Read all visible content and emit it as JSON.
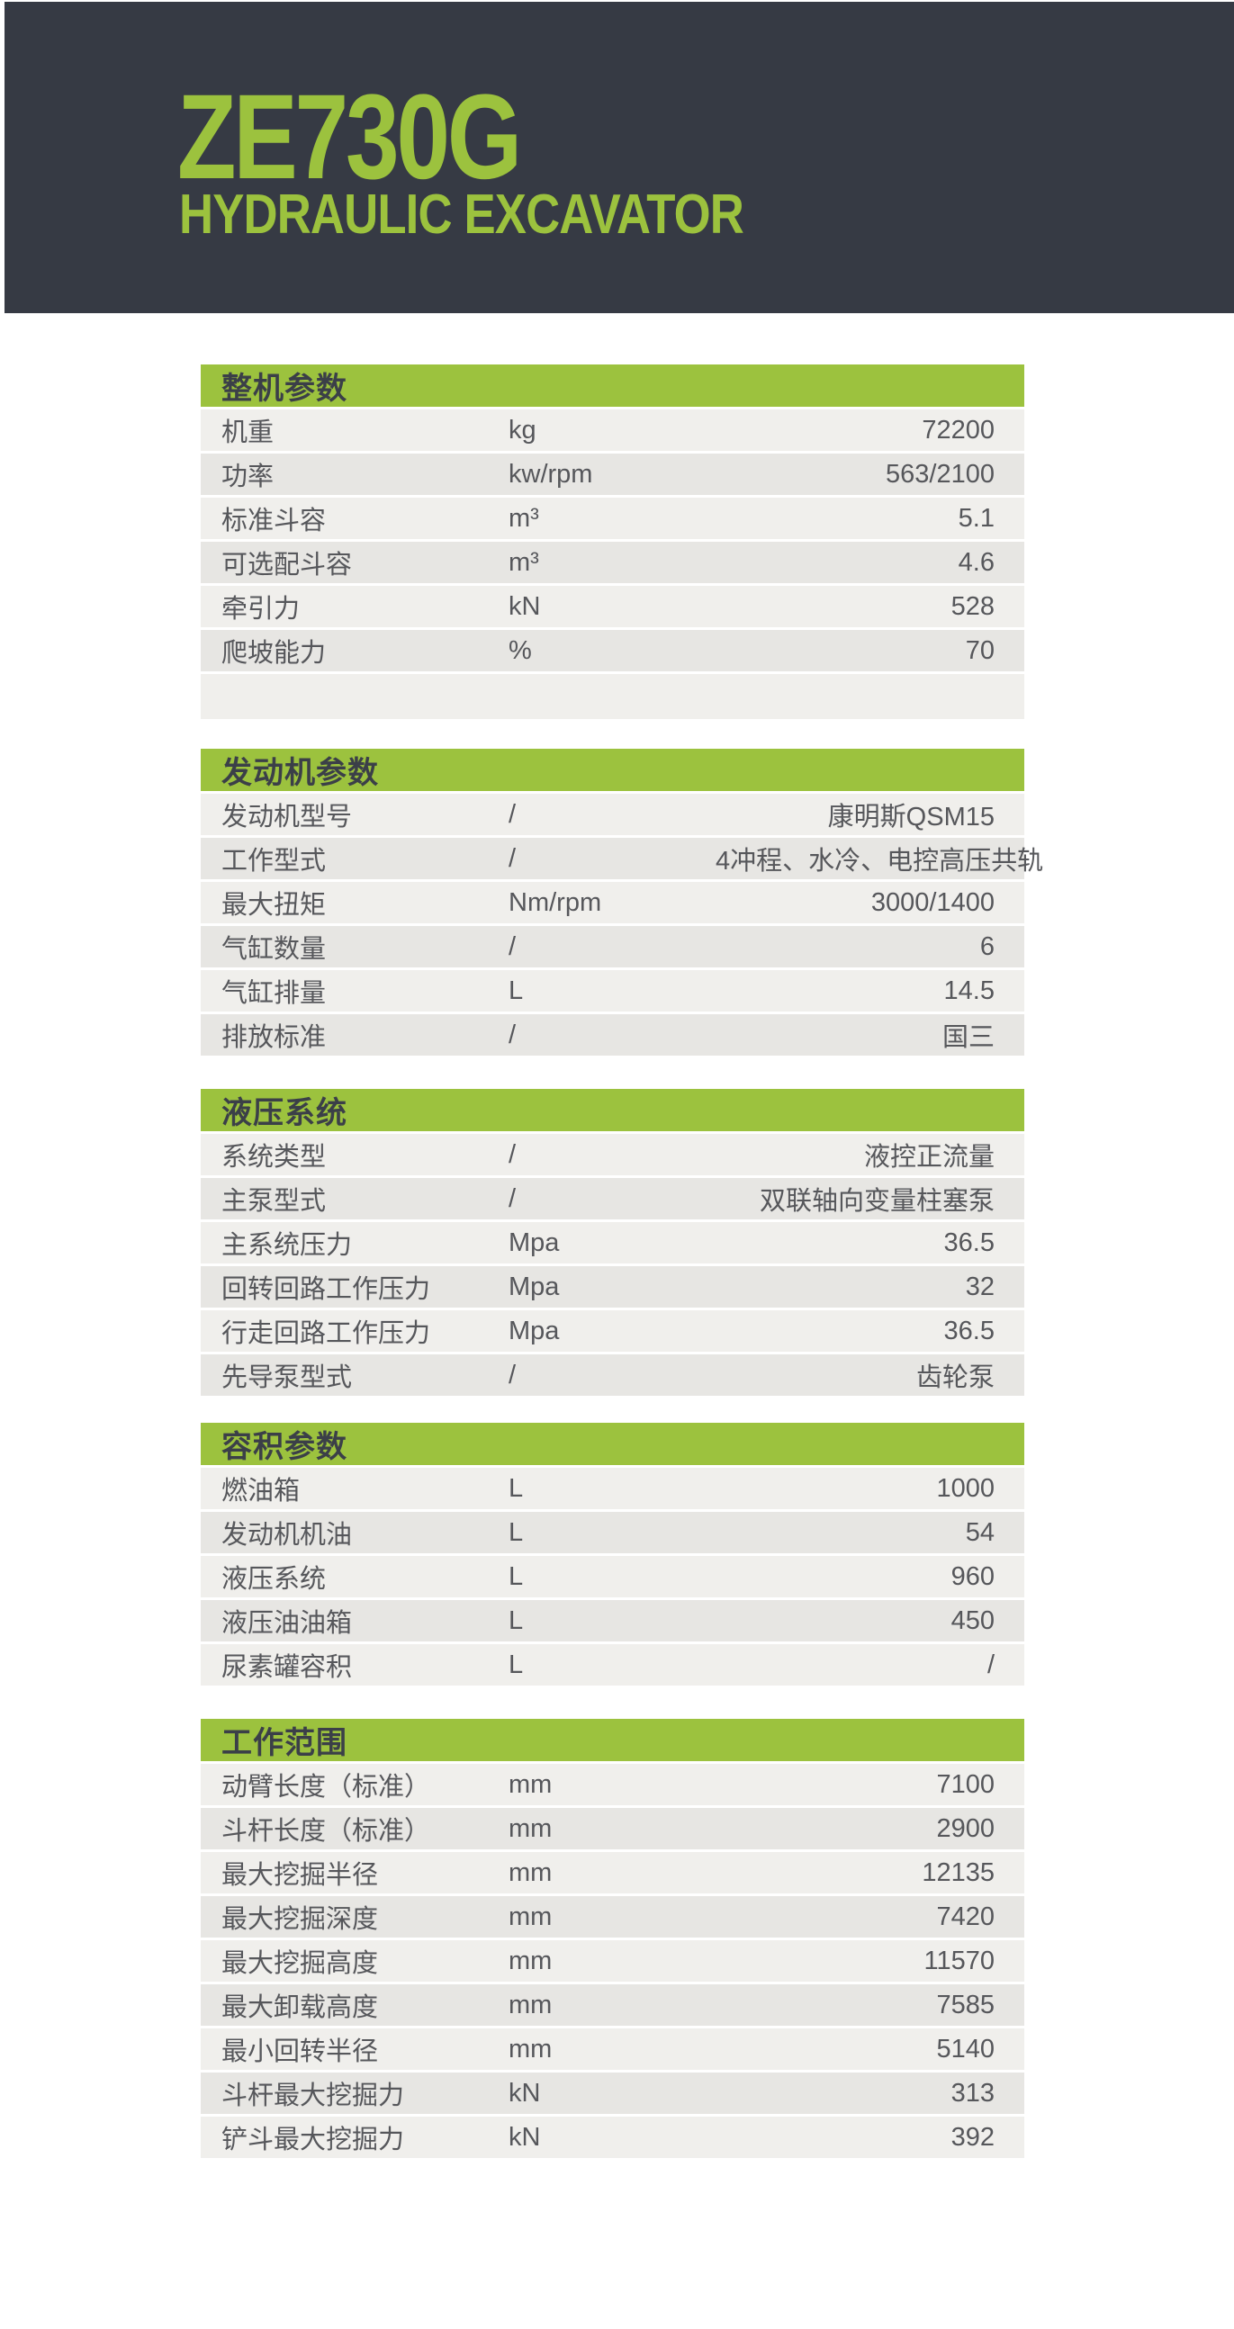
{
  "hero": {
    "model": "ZE730G",
    "subtitle": "HYDRAULIC EXCAVATOR"
  },
  "colors": {
    "accent_green": "#9cc23e",
    "banner_dark": "#363a44",
    "row_light": "#f0efec",
    "row_dark": "#e7e6e3",
    "text_gray": "#56575b"
  },
  "tables": [
    {
      "id": "overall",
      "title": "整机参数",
      "has_filler": true,
      "rows": [
        {
          "label": "机重",
          "unit": "kg",
          "value": "72200"
        },
        {
          "label": "功率",
          "unit": "kw/rpm",
          "value": "563/2100"
        },
        {
          "label": "标准斗容",
          "unit": "m³",
          "value": "5.1"
        },
        {
          "label": "可选配斗容",
          "unit": "m³",
          "value": "4.6"
        },
        {
          "label": "牵引力",
          "unit": "kN",
          "value": "528"
        },
        {
          "label": "爬坡能力",
          "unit": "%",
          "value": "70"
        }
      ]
    },
    {
      "id": "engine",
      "title": "发动机参数",
      "has_filler": false,
      "rows": [
        {
          "label": "发动机型号",
          "unit": "/",
          "value": "康明斯QSM15"
        },
        {
          "label": "工作型式",
          "unit": "/",
          "value": "4冲程、水冷、电控高压共轨"
        },
        {
          "label": "最大扭矩",
          "unit": "Nm/rpm",
          "value": "3000/1400"
        },
        {
          "label": "气缸数量",
          "unit": "/",
          "value": "6"
        },
        {
          "label": "气缸排量",
          "unit": "L",
          "value": "14.5"
        },
        {
          "label": "排放标准",
          "unit": "/",
          "value": "国三"
        }
      ]
    },
    {
      "id": "hydraulic",
      "title": "液压系统",
      "has_filler": false,
      "rows": [
        {
          "label": "系统类型",
          "unit": "/",
          "value": "液控正流量"
        },
        {
          "label": "主泵型式",
          "unit": "/",
          "value": "双联轴向变量柱塞泵"
        },
        {
          "label": "主系统压力",
          "unit": "Mpa",
          "value": "36.5"
        },
        {
          "label": "回转回路工作压力",
          "unit": "Mpa",
          "value": "32"
        },
        {
          "label": "行走回路工作压力",
          "unit": "Mpa",
          "value": "36.5"
        },
        {
          "label": "先导泵型式",
          "unit": "/",
          "value": "齿轮泵"
        }
      ]
    },
    {
      "id": "capacity",
      "title": "容积参数",
      "has_filler": false,
      "rows": [
        {
          "label": "燃油箱",
          "unit": "L",
          "value": "1000"
        },
        {
          "label": "发动机机油",
          "unit": "L",
          "value": "54"
        },
        {
          "label": "液压系统",
          "unit": "L",
          "value": "960"
        },
        {
          "label": "液压油油箱",
          "unit": "L",
          "value": "450"
        },
        {
          "label": "尿素罐容积",
          "unit": "L",
          "value": "/"
        }
      ]
    },
    {
      "id": "working-range",
      "title": "工作范围",
      "has_filler": false,
      "rows": [
        {
          "label": "动臂长度（标准）",
          "unit": "mm",
          "value": "7100"
        },
        {
          "label": "斗杆长度（标准）",
          "unit": "mm",
          "value": "2900"
        },
        {
          "label": "最大挖掘半径",
          "unit": "mm",
          "value": "12135"
        },
        {
          "label": "最大挖掘深度",
          "unit": "mm",
          "value": "7420"
        },
        {
          "label": "最大挖掘高度",
          "unit": "mm",
          "value": "11570"
        },
        {
          "label": "最大卸载高度",
          "unit": "mm",
          "value": "7585"
        },
        {
          "label": "最小回转半径",
          "unit": "mm",
          "value": "5140"
        },
        {
          "label": "斗杆最大挖掘力",
          "unit": "kN",
          "value": "313"
        },
        {
          "label": "铲斗最大挖掘力",
          "unit": "kN",
          "value": "392"
        }
      ]
    }
  ]
}
